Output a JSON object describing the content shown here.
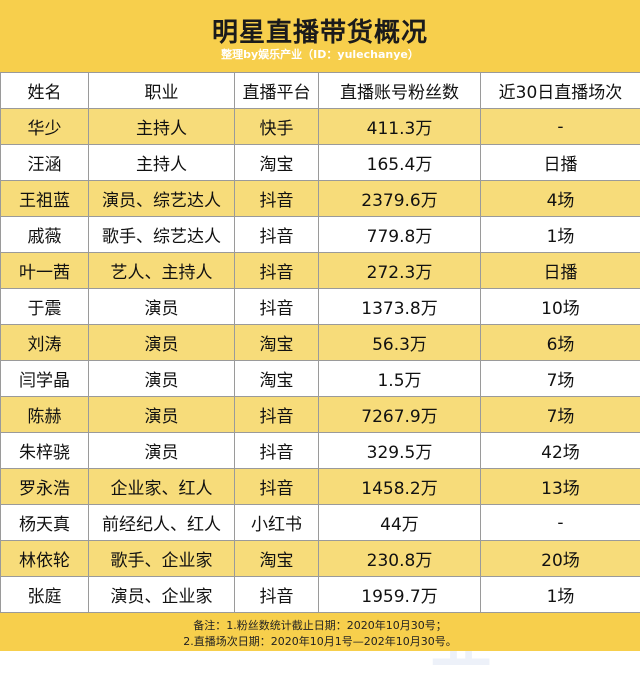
{
  "title": "明星直播带货概况",
  "subtitle": "整理by娱乐产业（ID：yulechanye）",
  "watermark": "娱乐产业",
  "columns": [
    "姓名",
    "职业",
    "直播平台",
    "直播账号粉丝数",
    "近30日直播场次"
  ],
  "rows": [
    {
      "name": "华少",
      "job": "主持人",
      "platform": "快手",
      "fans": "411.3万",
      "sessions": "-"
    },
    {
      "name": "汪涵",
      "job": "主持人",
      "platform": "淘宝",
      "fans": "165.4万",
      "sessions": "日播"
    },
    {
      "name": "王祖蓝",
      "job": "演员、综艺达人",
      "platform": "抖音",
      "fans": "2379.6万",
      "sessions": "4场"
    },
    {
      "name": "戚薇",
      "job": "歌手、综艺达人",
      "platform": "抖音",
      "fans": "779.8万",
      "sessions": "1场"
    },
    {
      "name": "叶一茜",
      "job": "艺人、主持人",
      "platform": "抖音",
      "fans": "272.3万",
      "sessions": "日播"
    },
    {
      "name": "于震",
      "job": "演员",
      "platform": "抖音",
      "fans": "1373.8万",
      "sessions": "10场"
    },
    {
      "name": "刘涛",
      "job": "演员",
      "platform": "淘宝",
      "fans": "56.3万",
      "sessions": "6场"
    },
    {
      "name": "闫学晶",
      "job": "演员",
      "platform": "淘宝",
      "fans": "1.5万",
      "sessions": "7场"
    },
    {
      "name": "陈赫",
      "job": "演员",
      "platform": "抖音",
      "fans": "7267.9万",
      "sessions": "7场"
    },
    {
      "name": "朱梓骁",
      "job": "演员",
      "platform": "抖音",
      "fans": "329.5万",
      "sessions": "42场"
    },
    {
      "name": "罗永浩",
      "job": "企业家、红人",
      "platform": "抖音",
      "fans": "1458.2万",
      "sessions": "13场"
    },
    {
      "name": "杨天真",
      "job": "前经纪人、红人",
      "platform": "小红书",
      "fans": "44万",
      "sessions": "-"
    },
    {
      "name": "林依轮",
      "job": "歌手、企业家",
      "platform": "淘宝",
      "fans": "230.8万",
      "sessions": "20场"
    },
    {
      "name": "张庭",
      "job": "演员、企业家",
      "platform": "抖音",
      "fans": "1959.7万",
      "sessions": "1场"
    }
  ],
  "notes": [
    "备注：1.粉丝数统计截止日期：2020年10月30号；",
    "2.直播场次日期：2020年10月1号—202年10月30号。"
  ],
  "colors": {
    "header_bg": "#f7cf4c",
    "stripe_bg": "#f7dc7a",
    "border": "#9a9a9a"
  }
}
